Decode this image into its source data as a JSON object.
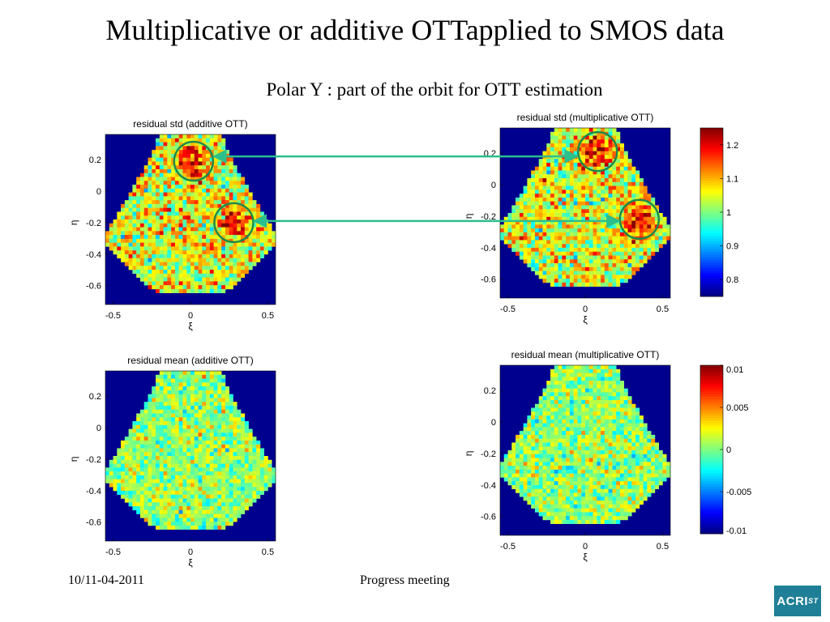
{
  "slide": {
    "title": "Multiplicative or additive OTTapplied to SMOS data",
    "subtitle": "Polar Y : part of the orbit for OTT estimation",
    "footer_date": "10/11-04-2011",
    "footer_center": "Progress meeting",
    "logo_text": "ACRI",
    "logo_sub": "ST"
  },
  "colors": {
    "background_outside_fov": "#00008f",
    "arrow": "#2bbf8c",
    "circle": "#1d8a4a",
    "colormap": "jet"
  },
  "chart_data": [
    {
      "type": "heatmap",
      "id": "std_add",
      "title": "residual std (additive OTT)",
      "xlabel": "ξ",
      "ylabel": "η",
      "xticks": [
        "-0.5",
        "0",
        "0.5"
      ],
      "xtick_values": [
        -0.5,
        0,
        0.5
      ],
      "yticks": [
        "0.2",
        "0",
        "-0.2",
        "-0.4",
        "-0.6"
      ],
      "ytick_values": [
        0.2,
        0,
        -0.2,
        -0.4,
        -0.6
      ],
      "xlim": [
        -0.55,
        0.55
      ],
      "ylim": [
        -0.72,
        0.36
      ],
      "clim": [
        0.75,
        1.25
      ],
      "mean_level": 1.05,
      "noise": 0.09,
      "hotspots": [
        {
          "x": 0.02,
          "y": 0.19,
          "amp": 0.14,
          "r": 0.07
        },
        {
          "x": 0.28,
          "y": -0.2,
          "amp": 0.14,
          "r": 0.07
        }
      ],
      "annotations": [
        "circle at (0.02, 0.19)",
        "circle at (0.28, -0.2)"
      ]
    },
    {
      "type": "heatmap",
      "id": "std_mult",
      "title": "residual std (multiplicative OTT)",
      "xlabel": "ξ",
      "ylabel": "η",
      "xticks": [
        "-0.5",
        "0",
        "0.5"
      ],
      "xtick_values": [
        -0.5,
        0,
        0.5
      ],
      "yticks": [
        "0.2",
        "0",
        "-0.2",
        "-0.4",
        "-0.6"
      ],
      "ytick_values": [
        0.2,
        0,
        -0.2,
        -0.4,
        -0.6
      ],
      "xlim": [
        -0.55,
        0.55
      ],
      "ylim": [
        -0.72,
        0.36
      ],
      "clim": [
        0.75,
        1.25
      ],
      "mean_level": 1.05,
      "noise": 0.09,
      "hotspots": [
        {
          "x": 0.08,
          "y": 0.21,
          "amp": 0.14,
          "r": 0.07
        },
        {
          "x": 0.35,
          "y": -0.22,
          "amp": 0.16,
          "r": 0.07
        }
      ],
      "annotations": [
        "circle at (0.08, 0.21)",
        "circle at (0.35, -0.22)"
      ]
    },
    {
      "type": "heatmap",
      "id": "mean_add",
      "title": "residual mean (additive OTT)",
      "xlabel": "ξ",
      "ylabel": "η",
      "xticks": [
        "-0.5",
        "0",
        "0.5"
      ],
      "xtick_values": [
        -0.5,
        0,
        0.5
      ],
      "yticks": [
        "0.2",
        "0",
        "-0.2",
        "-0.4",
        "-0.6"
      ],
      "ytick_values": [
        0.2,
        0,
        -0.2,
        -0.4,
        -0.6
      ],
      "xlim": [
        -0.55,
        0.55
      ],
      "ylim": [
        -0.72,
        0.36
      ],
      "clim": [
        -0.01,
        0.01
      ],
      "mean_level": 0.0005,
      "noise": 0.0025,
      "hotspots": []
    },
    {
      "type": "heatmap",
      "id": "mean_mult",
      "title": "residual mean (multiplicative OTT)",
      "xlabel": "ξ",
      "ylabel": "η",
      "xticks": [
        "-0.5",
        "0",
        "0.5"
      ],
      "xtick_values": [
        -0.5,
        0,
        0.5
      ],
      "yticks": [
        "0.2",
        "0",
        "-0.2",
        "-0.4",
        "-0.6"
      ],
      "ytick_values": [
        0.2,
        0,
        -0.2,
        -0.4,
        -0.6
      ],
      "xlim": [
        -0.55,
        0.55
      ],
      "ylim": [
        -0.72,
        0.36
      ],
      "clim": [
        -0.01,
        0.01
      ],
      "mean_level": 0.0005,
      "noise": 0.0025,
      "hotspots": []
    }
  ],
  "colorbars": {
    "std": {
      "ticks": [
        "1.2",
        "1.1",
        "1",
        "0.9",
        "0.8"
      ],
      "tick_values": [
        1.2,
        1.1,
        1.0,
        0.9,
        0.8
      ],
      "clim": [
        0.75,
        1.25
      ]
    },
    "mean": {
      "ticks": [
        "0.01",
        "0.005",
        "0",
        "-0.005",
        "-0.01"
      ],
      "tick_values": [
        0.01,
        0.005,
        0,
        -0.005,
        -0.01
      ],
      "clim": [
        -0.01,
        0.01
      ]
    }
  }
}
